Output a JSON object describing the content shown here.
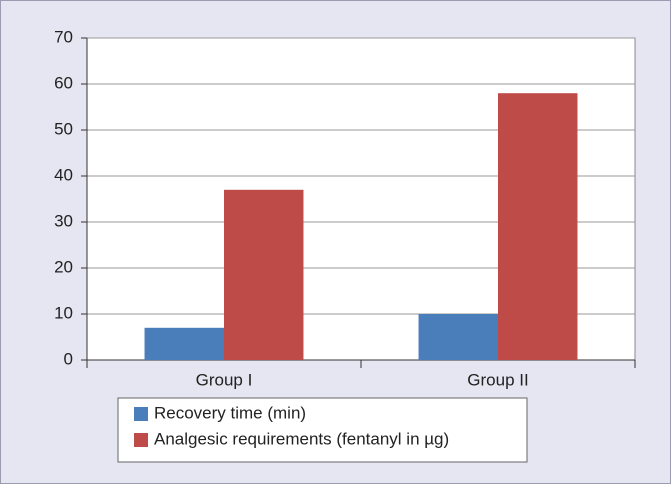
{
  "chart_data": {
    "type": "bar",
    "categories": [
      "Group I",
      "Group II"
    ],
    "series": [
      {
        "name": "Recovery time (min)",
        "color": "#4a7ebb",
        "values": [
          7,
          10
        ]
      },
      {
        "name": "Analgesic requirements (fentanyl in µg)",
        "color": "#be4b48",
        "values": [
          37,
          58
        ]
      }
    ],
    "ylim": [
      0,
      70
    ],
    "yticks": [
      0,
      10,
      20,
      30,
      40,
      50,
      60,
      70
    ],
    "grid": true
  }
}
